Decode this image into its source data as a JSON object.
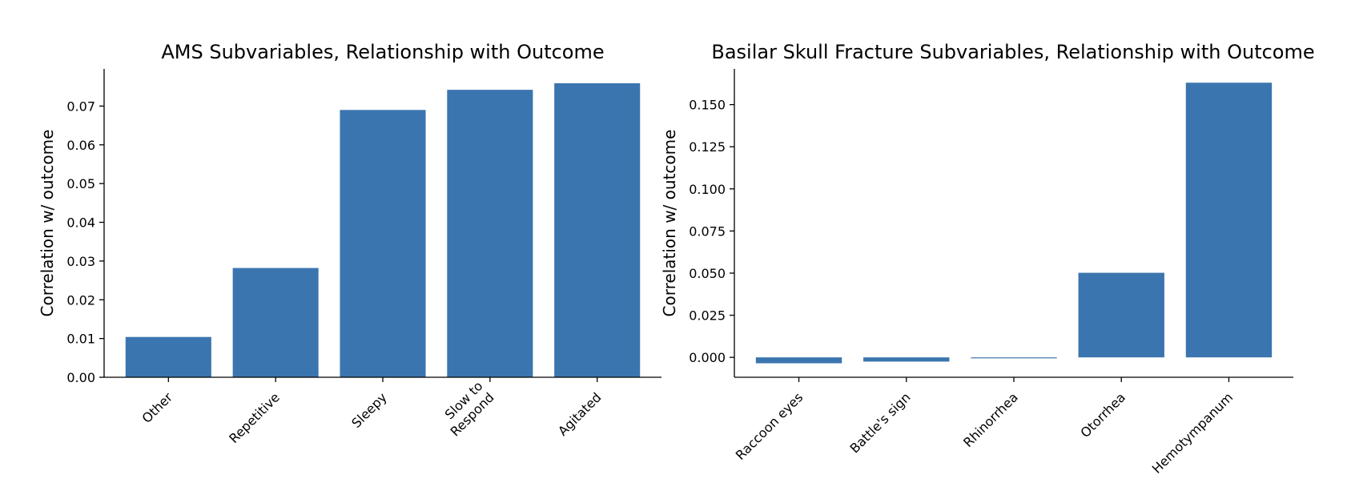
{
  "chart_data": [
    {
      "type": "bar",
      "title": "AMS Subvariables, Relationship with Outcome",
      "xlabel": "",
      "ylabel": "Correlation w/ outcome",
      "categories": [
        "Other",
        "Repetitive",
        "Sleepy",
        "Slow to\nRespond",
        "Agitated"
      ],
      "values": [
        0.0104,
        0.0282,
        0.069,
        0.0742,
        0.0759
      ],
      "ylim": [
        0,
        0.0796
      ],
      "yticks": [
        0.0,
        0.01,
        0.02,
        0.03,
        0.04,
        0.05,
        0.06,
        0.07
      ],
      "ytick_labels": [
        "0.00",
        "0.01",
        "0.02",
        "0.03",
        "0.04",
        "0.05",
        "0.06",
        "0.07"
      ],
      "color": "#3b75af",
      "grid": false,
      "legend": "none"
    },
    {
      "type": "bar",
      "title": "Basilar Skull Fracture Subvariables, Relationship with Outcome",
      "xlabel": "",
      "ylabel": "Correlation w/ outcome",
      "categories": [
        "Raccoon eyes",
        "Battle's sign",
        "Rhinorrhea",
        "Otorrhea",
        "Hemotympanum"
      ],
      "values": [
        -0.0035,
        -0.0025,
        -0.0005,
        0.0502,
        0.163
      ],
      "ylim": [
        -0.0118,
        0.1712
      ],
      "yticks": [
        0.0,
        0.025,
        0.05,
        0.075,
        0.1,
        0.125,
        0.15
      ],
      "ytick_labels": [
        "0.000",
        "0.025",
        "0.050",
        "0.075",
        "0.100",
        "0.125",
        "0.150"
      ],
      "color": "#3b75af",
      "grid": false,
      "legend": "none"
    }
  ]
}
